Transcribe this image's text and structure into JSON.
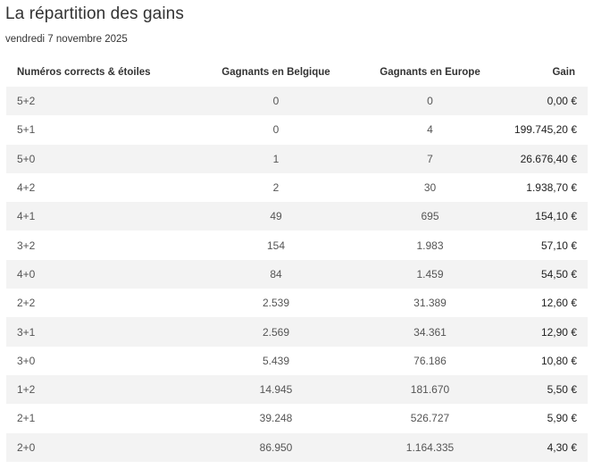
{
  "page": {
    "title": "La répartition des gains",
    "date": "vendredi 7 novembre 2025"
  },
  "table": {
    "headers": {
      "combo": "Numéros corrects & étoiles",
      "belgium": "Gagnants en Belgique",
      "europe": "Gagnants en Europe",
      "gain": "Gain"
    },
    "rows": [
      {
        "combo": "5+2",
        "belgium": "0",
        "europe": "0",
        "gain": "0,00 €"
      },
      {
        "combo": "5+1",
        "belgium": "0",
        "europe": "4",
        "gain": "199.745,20 €"
      },
      {
        "combo": "5+0",
        "belgium": "1",
        "europe": "7",
        "gain": "26.676,40 €"
      },
      {
        "combo": "4+2",
        "belgium": "2",
        "europe": "30",
        "gain": "1.938,70 €"
      },
      {
        "combo": "4+1",
        "belgium": "49",
        "europe": "695",
        "gain": "154,10 €"
      },
      {
        "combo": "3+2",
        "belgium": "154",
        "europe": "1.983",
        "gain": "57,10 €"
      },
      {
        "combo": "4+0",
        "belgium": "84",
        "europe": "1.459",
        "gain": "54,50 €"
      },
      {
        "combo": "2+2",
        "belgium": "2.539",
        "europe": "31.389",
        "gain": "12,60 €"
      },
      {
        "combo": "3+1",
        "belgium": "2.569",
        "europe": "34.361",
        "gain": "12,90 €"
      },
      {
        "combo": "3+0",
        "belgium": "5.439",
        "europe": "76.186",
        "gain": "10,80 €"
      },
      {
        "combo": "1+2",
        "belgium": "14.945",
        "europe": "181.670",
        "gain": "5,50 €"
      },
      {
        "combo": "2+1",
        "belgium": "39.248",
        "europe": "526.727",
        "gain": "5,90 €"
      },
      {
        "combo": "2+0",
        "belgium": "86.950",
        "europe": "1.164.335",
        "gain": "4,30 €"
      }
    ]
  }
}
